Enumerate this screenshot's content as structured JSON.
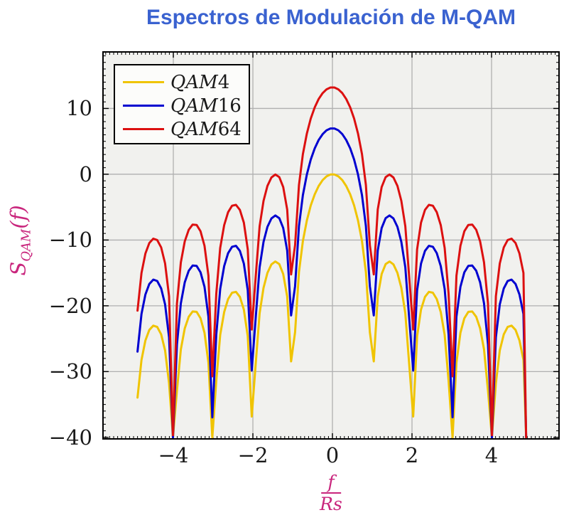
{
  "title": {
    "text": "Espectros de Modulación de M-QAM",
    "color": "#3A62D0"
  },
  "axes": {
    "xlabel": {
      "num": "f",
      "den": "Rs",
      "color": "#C9267D"
    },
    "ylabel": {
      "base": "S",
      "sub": "QAM",
      "arg": "(f)",
      "color": "#C9267D"
    },
    "xlim": [
      -5.786,
      5.714
    ],
    "ylim": [
      -40.34,
      18.7
    ],
    "x_major_ticks": [
      -4,
      -2,
      0,
      2,
      4
    ],
    "x_tick_labels": [
      "−4",
      "−2",
      "0",
      "2",
      "4"
    ],
    "y_major_ticks": [
      10,
      0,
      -10,
      -20,
      -30,
      -40
    ],
    "y_tick_labels": [
      "10",
      "0",
      "−10",
      "−20",
      "−30",
      "−40"
    ],
    "x_minor_step": 0.1,
    "y_minor_step": 1,
    "grid": true,
    "grid_color": "#b0b0b0",
    "plot_bg": "#f1f1ee",
    "border_color": "#000000",
    "tick_color": "#000000"
  },
  "legend": {
    "position": "top-left",
    "bg": "#fcfcfa",
    "border_color": "#000000",
    "items": [
      {
        "letters": "QAM",
        "digits": "4",
        "color": "#F0C400"
      },
      {
        "letters": "QAM",
        "digits": "16",
        "color": "#0000D0"
      },
      {
        "letters": "QAM",
        "digits": "64",
        "color": "#DC1010"
      }
    ]
  },
  "chart_data": {
    "type": "line",
    "function": "S(f) = offset_db + 20*log10(|sin(pi*f)/(pi*f)|)",
    "x_start": -4.9,
    "x_step": 0.09899,
    "n_samples": 99,
    "clip_min_db": -40,
    "x_range_data": [
      -4.9,
      4.9
    ],
    "nulls_at": [
      -4,
      -3,
      -2,
      -1,
      1,
      2,
      3,
      4
    ],
    "series": [
      {
        "name": "QAM4",
        "offset_db": 0,
        "peak_db": 0,
        "color": "#F0C400",
        "right_tail": [
          [
            4.87,
            -40
          ]
        ]
      },
      {
        "name": "QAM16",
        "offset_db": 6.99,
        "peak_db": 6.99,
        "color": "#0000D0",
        "right_tail": [
          [
            4.87,
            -40
          ]
        ]
      },
      {
        "name": "QAM64",
        "offset_db": 13.22,
        "peak_db": 13.22,
        "color": "#DC1010",
        "right_tail": [
          [
            4.87,
            -40
          ]
        ]
      }
    ]
  }
}
